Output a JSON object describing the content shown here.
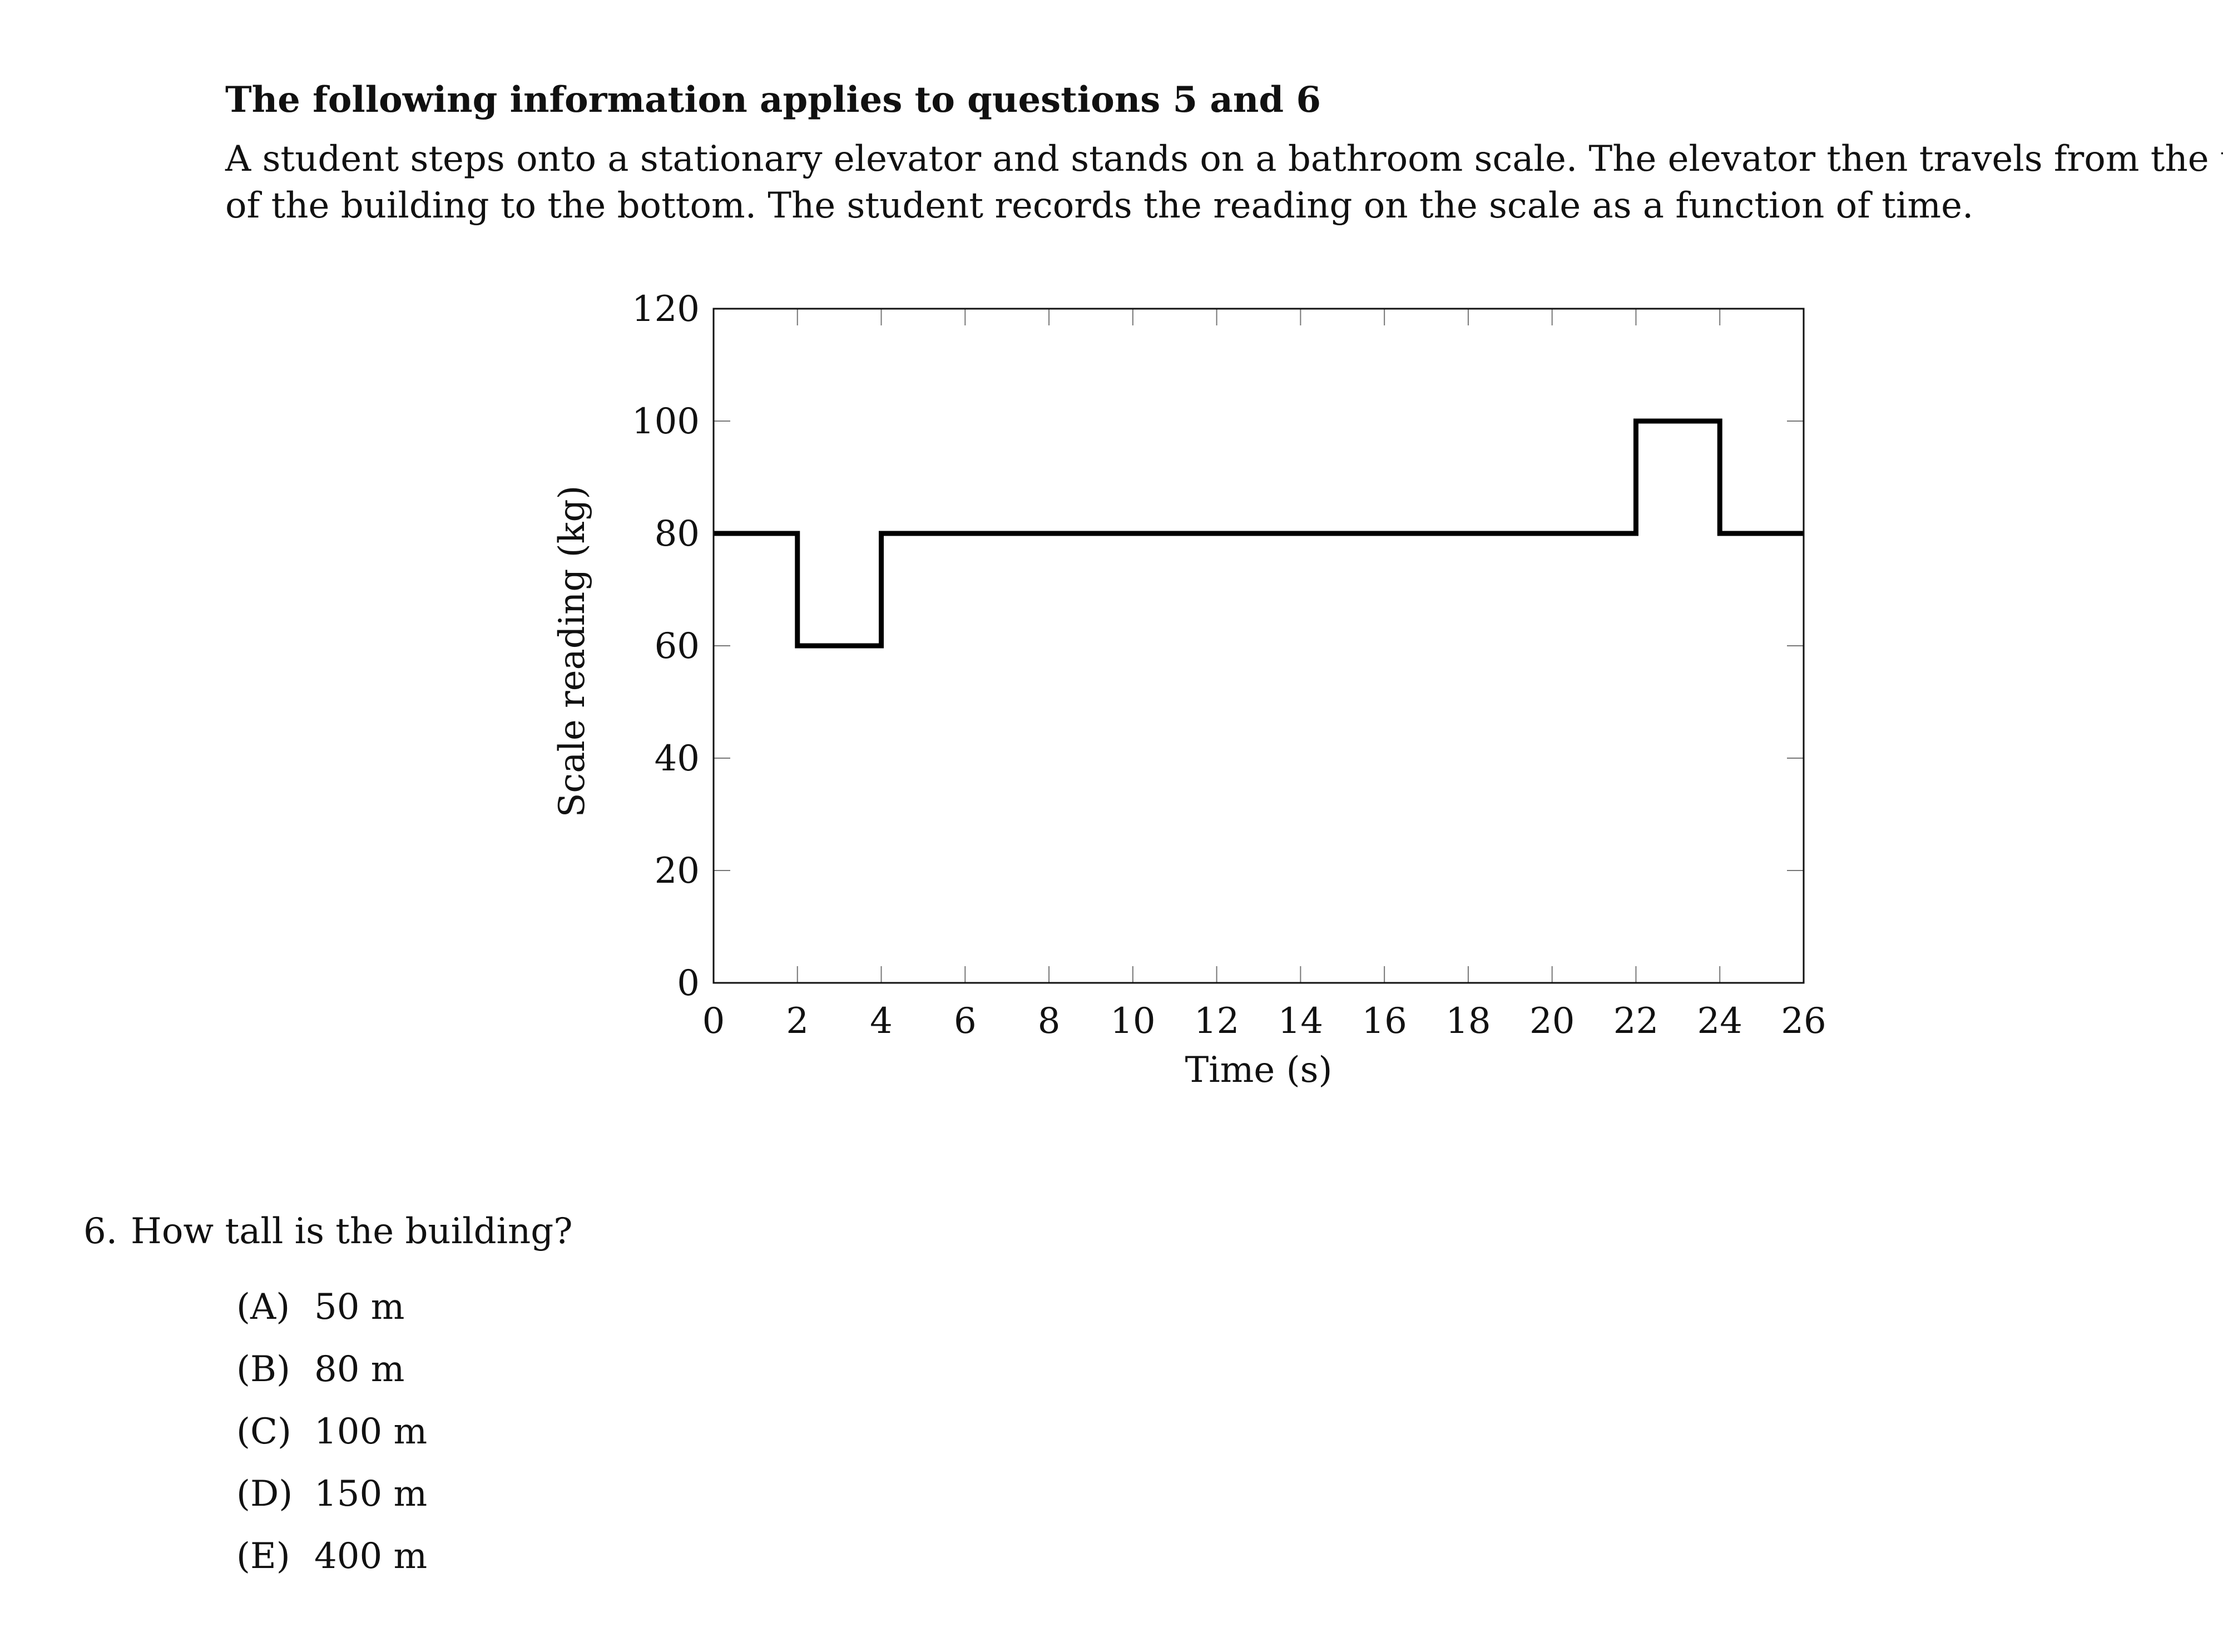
{
  "heading": "The following information applies to questions 5 and 6",
  "paragraph": {
    "line1": "A student steps onto a stationary elevator and stands on a bathroom scale. The elevator then travels from the top",
    "line2": "of the building to the bottom. The student records the reading on the scale as a function of time."
  },
  "chart_data": {
    "type": "line",
    "title": "",
    "xlabel": "Time (s)",
    "ylabel": "Scale reading (kg)",
    "xlim": [
      0,
      26
    ],
    "ylim": [
      0,
      120
    ],
    "xticks": [
      0,
      2,
      4,
      6,
      8,
      10,
      12,
      14,
      16,
      18,
      20,
      22,
      24,
      26
    ],
    "yticks": [
      0,
      20,
      40,
      60,
      80,
      100,
      120
    ],
    "grid": false,
    "step": true,
    "series": [
      {
        "x": [
          0,
          2,
          2,
          4,
          4,
          22,
          22,
          24,
          24,
          26
        ],
        "y": [
          80,
          80,
          60,
          60,
          80,
          80,
          100,
          100,
          80,
          80
        ]
      }
    ]
  },
  "question": {
    "number": "6.",
    "text": "How tall is the building?",
    "choices": [
      {
        "letter": "(A)",
        "text": "50 m"
      },
      {
        "letter": "(B)",
        "text": "80 m"
      },
      {
        "letter": "(C)",
        "text": "100 m"
      },
      {
        "letter": "(D)",
        "text": "150 m"
      },
      {
        "letter": "(E)",
        "text": "400 m"
      }
    ]
  }
}
